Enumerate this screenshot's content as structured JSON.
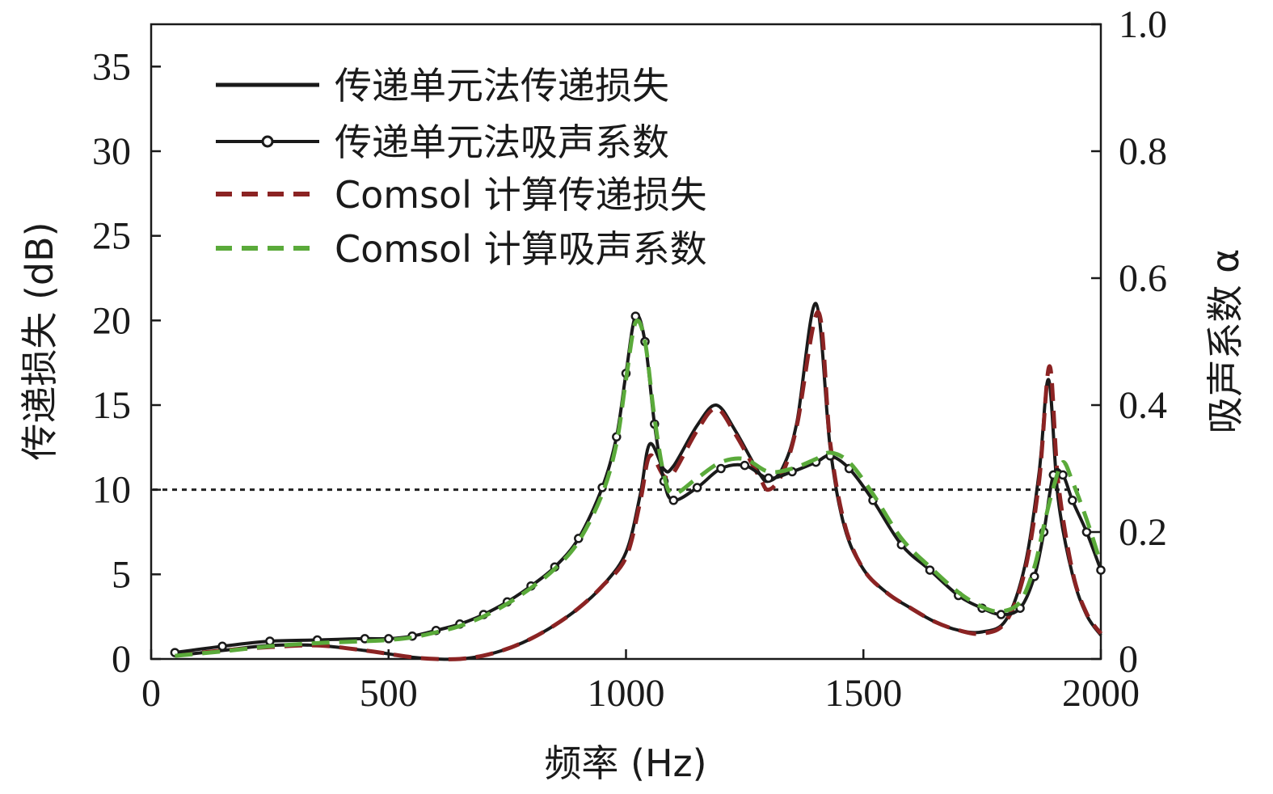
{
  "chart_data": {
    "type": "line",
    "title": "",
    "xlabel": "频率 (Hz)",
    "ylabel": "传递损失 (dB)",
    "y2label": "吸声系数 α",
    "xlim": [
      0,
      2000
    ],
    "ylim": [
      0,
      37.5
    ],
    "y2lim": [
      0,
      1.0
    ],
    "x_ticks": [
      0,
      500,
      1000,
      1500,
      2000
    ],
    "y_ticks": [
      0,
      5,
      10,
      15,
      20,
      25,
      30,
      35
    ],
    "y2_ticks": [
      "0",
      "0.2",
      "0.4",
      "0.6",
      "0.8",
      "1.0"
    ],
    "y2_tick_values": [
      0,
      0.2,
      0.4,
      0.6,
      0.8,
      1.0
    ],
    "reference_line": {
      "axis": "y",
      "value": 10,
      "style": "dotted",
      "color": "#222222"
    },
    "legend": {
      "position": "top-left"
    },
    "series": [
      {
        "name": "传递单元法传递损失",
        "axis": "left",
        "style": "solid",
        "color": "#1a1a1a",
        "x": [
          50,
          150,
          250,
          350,
          450,
          500,
          550,
          600,
          650,
          700,
          750,
          800,
          850,
          900,
          950,
          1000,
          1030,
          1050,
          1080,
          1100,
          1150,
          1190,
          1230,
          1280,
          1300,
          1330,
          1360,
          1400,
          1430,
          1460,
          1500,
          1550,
          1600,
          1650,
          1700,
          1750,
          1800,
          1840,
          1870,
          1890,
          1910,
          1940,
          1970,
          2000
        ],
        "y": [
          0.2,
          0.5,
          0.8,
          0.8,
          0.5,
          0.3,
          0.1,
          0.0,
          0.0,
          0.2,
          0.6,
          1.2,
          2.0,
          3.0,
          4.3,
          6.3,
          9.7,
          12.7,
          11.2,
          11.4,
          13.8,
          15.0,
          13.5,
          11.0,
          10.5,
          11.3,
          14.0,
          21.0,
          12.5,
          7.8,
          5.3,
          3.9,
          3.0,
          2.2,
          1.7,
          1.6,
          2.3,
          5.5,
          11.0,
          16.5,
          9.5,
          5.0,
          2.6,
          1.4
        ]
      },
      {
        "name": "传递单元法吸声系数",
        "axis": "right",
        "style": "solid-markers",
        "color": "#1a1a1a",
        "x": [
          50,
          150,
          250,
          350,
          450,
          500,
          550,
          600,
          650,
          700,
          750,
          800,
          850,
          900,
          950,
          980,
          1000,
          1020,
          1040,
          1060,
          1080,
          1100,
          1150,
          1200,
          1250,
          1300,
          1350,
          1400,
          1430,
          1470,
          1520,
          1580,
          1640,
          1700,
          1750,
          1790,
          1830,
          1860,
          1880,
          1900,
          1920,
          1940,
          1970,
          2000
        ],
        "y": [
          0.01,
          0.02,
          0.028,
          0.03,
          0.032,
          0.032,
          0.036,
          0.045,
          0.055,
          0.07,
          0.09,
          0.115,
          0.145,
          0.19,
          0.27,
          0.35,
          0.45,
          0.54,
          0.5,
          0.37,
          0.28,
          0.25,
          0.27,
          0.3,
          0.305,
          0.285,
          0.295,
          0.31,
          0.32,
          0.3,
          0.25,
          0.18,
          0.14,
          0.1,
          0.08,
          0.07,
          0.08,
          0.13,
          0.2,
          0.29,
          0.29,
          0.25,
          0.2,
          0.14
        ]
      },
      {
        "name": "Comsol 计算传递损失",
        "axis": "left",
        "style": "dashed",
        "color": "#8b2323",
        "x": [
          50,
          150,
          250,
          350,
          450,
          500,
          550,
          600,
          650,
          700,
          750,
          800,
          850,
          900,
          950,
          1000,
          1030,
          1050,
          1080,
          1100,
          1150,
          1190,
          1230,
          1280,
          1300,
          1330,
          1360,
          1405,
          1430,
          1460,
          1500,
          1550,
          1600,
          1650,
          1700,
          1750,
          1800,
          1840,
          1870,
          1892,
          1910,
          1940,
          1970,
          2000
        ],
        "y": [
          0.2,
          0.5,
          0.7,
          0.8,
          0.5,
          0.3,
          0.1,
          0.0,
          0.0,
          0.2,
          0.6,
          1.2,
          2.0,
          3.0,
          4.3,
          6.0,
          9.3,
          12.0,
          10.8,
          11.0,
          13.5,
          14.8,
          13.3,
          10.8,
          10.0,
          11.0,
          13.8,
          20.5,
          12.8,
          8.0,
          5.3,
          3.9,
          3.0,
          2.2,
          1.7,
          1.5,
          2.2,
          5.2,
          10.5,
          17.3,
          10.5,
          5.2,
          2.7,
          1.5
        ]
      },
      {
        "name": "Comsol 计算吸声系数",
        "axis": "right",
        "style": "dashed",
        "color": "#5aaa3a",
        "x": [
          50,
          150,
          250,
          350,
          450,
          500,
          550,
          600,
          650,
          700,
          750,
          800,
          850,
          900,
          950,
          980,
          1000,
          1020,
          1040,
          1060,
          1080,
          1100,
          1150,
          1200,
          1250,
          1300,
          1350,
          1400,
          1430,
          1470,
          1520,
          1580,
          1640,
          1700,
          1750,
          1790,
          1830,
          1860,
          1880,
          1900,
          1920,
          1940,
          1970,
          2000
        ],
        "y": [
          0.005,
          0.012,
          0.02,
          0.025,
          0.028,
          0.03,
          0.034,
          0.042,
          0.052,
          0.067,
          0.087,
          0.112,
          0.142,
          0.185,
          0.26,
          0.34,
          0.44,
          0.53,
          0.5,
          0.38,
          0.29,
          0.26,
          0.285,
          0.31,
          0.315,
          0.295,
          0.3,
          0.315,
          0.325,
          0.31,
          0.26,
          0.19,
          0.145,
          0.105,
          0.082,
          0.075,
          0.09,
          0.145,
          0.21,
          0.27,
          0.31,
          0.28,
          0.22,
          0.15
        ]
      }
    ]
  }
}
